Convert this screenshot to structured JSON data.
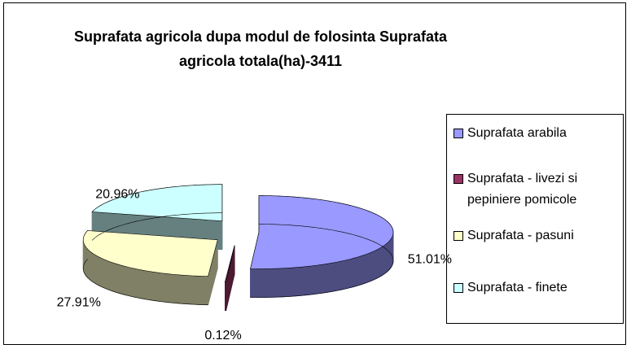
{
  "chart_data": {
    "type": "pie",
    "title": "Suprafata agricola dupa modul de folosinta Suprafata agricola totala(ha)-3411",
    "categories": [
      "Suprafata arabila",
      "Suprafata - livezi si pepiniere pomicole",
      "Suprafata - pasuni",
      "Suprafata - finete"
    ],
    "values": [
      51.01,
      0.12,
      27.91,
      20.96
    ],
    "value_labels": [
      "51.01%",
      "0.12%",
      "27.91%",
      "20.96%"
    ],
    "colors": [
      "#9999ff",
      "#993366",
      "#ffffcc",
      "#ccffff"
    ],
    "legend": "right"
  }
}
